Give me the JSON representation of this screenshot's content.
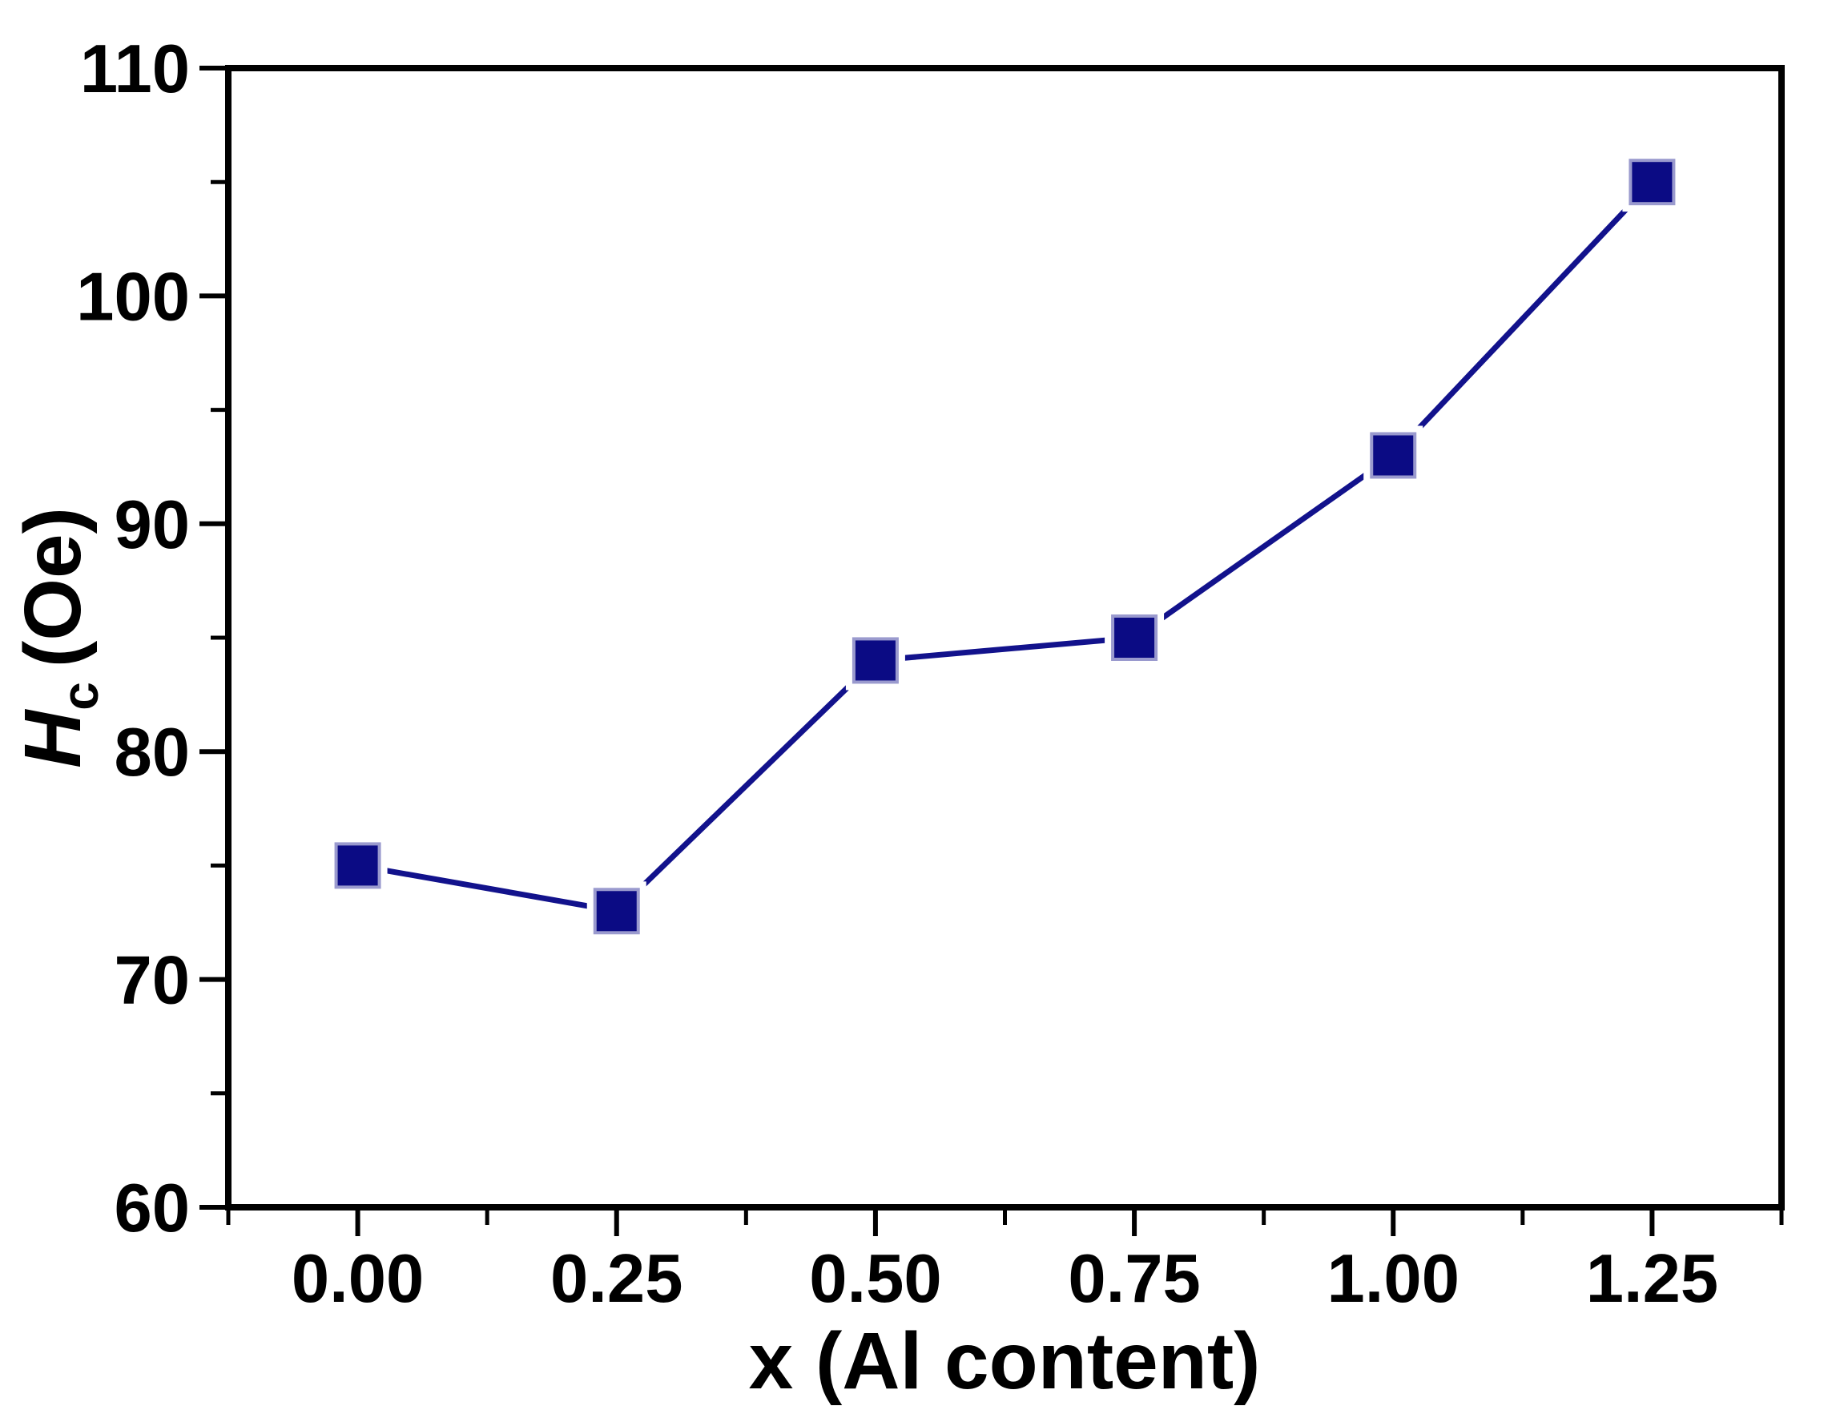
{
  "figure": {
    "background": "#ffffff",
    "title": ""
  },
  "chart_data": {
    "type": "line",
    "title": "",
    "series_name": "coercivity-vs-al-content",
    "x": [
      0.0,
      0.25,
      0.5,
      0.75,
      1.0,
      1.25
    ],
    "y": [
      75,
      73,
      84,
      85,
      93,
      105
    ],
    "xlabel": "x (Al content)",
    "ylabel": {
      "symbol": "H",
      "subscript": "c",
      "unit": "(Oe)"
    },
    "xlim": [
      -0.125,
      1.375
    ],
    "ylim": [
      60,
      110
    ],
    "x_tick_values": [
      0.0,
      0.25,
      0.5,
      0.75,
      1.0,
      1.25
    ],
    "x_tick_labels": [
      "0.00",
      "0.25",
      "0.50",
      "0.75",
      "1.00",
      "1.25"
    ],
    "y_tick_values": [
      60,
      70,
      80,
      90,
      100,
      110
    ],
    "y_tick_labels": [
      "60",
      "70",
      "80",
      "90",
      "100",
      "110"
    ],
    "x_minor_ticks": [
      -0.125,
      0.125,
      0.375,
      0.625,
      0.875,
      1.125,
      1.375
    ],
    "y_minor_ticks": [
      65,
      75,
      85,
      95,
      105
    ],
    "grid": false,
    "legend": "none",
    "marker": "square",
    "frame": "box",
    "colors": {
      "line": "#12128c",
      "marker_fill": "#0b0b84",
      "marker_edge": "#9a9ace",
      "axis": "#000000",
      "text": "#000000"
    }
  }
}
